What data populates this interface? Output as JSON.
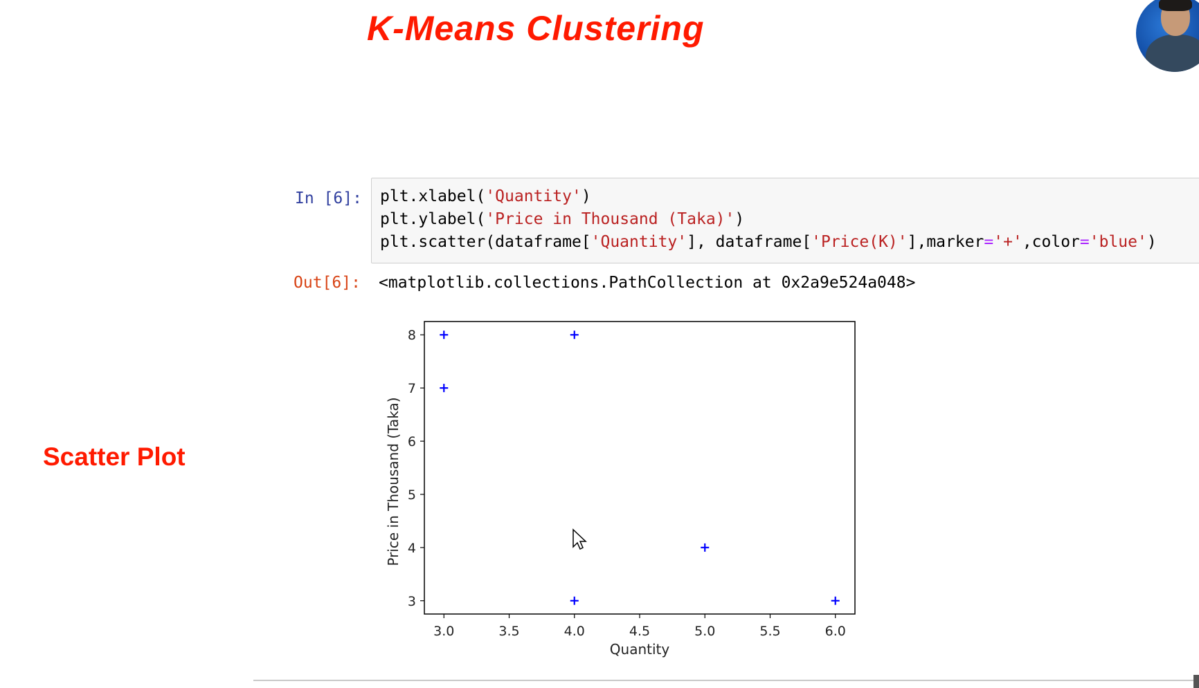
{
  "slide": {
    "title": "K-Means Clustering",
    "side_label": "Scatter Plot"
  },
  "notebook": {
    "input_prompt": "In [6]:",
    "output_prompt": "Out[6]:",
    "code_lines": [
      [
        {
          "t": "plt.xlabel(",
          "c": ""
        },
        {
          "t": "'Quantity'",
          "c": "str"
        },
        {
          "t": ")",
          "c": ""
        }
      ],
      [
        {
          "t": "plt.ylabel(",
          "c": ""
        },
        {
          "t": "'Price in Thousand (Taka)'",
          "c": "str"
        },
        {
          "t": ")",
          "c": ""
        }
      ],
      [
        {
          "t": "plt.scatter(dataframe[",
          "c": ""
        },
        {
          "t": "'Quantity'",
          "c": "str"
        },
        {
          "t": "], dataframe[",
          "c": ""
        },
        {
          "t": "'Price(K)'",
          "c": "str"
        },
        {
          "t": "],marker",
          "c": ""
        },
        {
          "t": "=",
          "c": "op"
        },
        {
          "t": "'+'",
          "c": "str"
        },
        {
          "t": ",color",
          "c": ""
        },
        {
          "t": "=",
          "c": "op"
        },
        {
          "t": "'blue'",
          "c": "str"
        },
        {
          "t": ")",
          "c": ""
        }
      ]
    ],
    "output_text": "<matplotlib.collections.PathCollection at 0x2a9e524a048>"
  },
  "chart_data": {
    "type": "scatter",
    "xlabel": "Quantity",
    "ylabel": "Price in Thousand (Taka)",
    "x": [
      3,
      3,
      4,
      4,
      5,
      6
    ],
    "y": [
      8,
      7,
      8,
      3,
      4,
      3
    ],
    "marker": "+",
    "color": "#0000ff",
    "xlim": [
      2.85,
      6.15
    ],
    "ylim": [
      2.75,
      8.25
    ],
    "xticks": [
      "3.0",
      "3.5",
      "4.0",
      "4.5",
      "5.0",
      "5.5",
      "6.0"
    ],
    "xtick_values": [
      3.0,
      3.5,
      4.0,
      4.5,
      5.0,
      5.5,
      6.0
    ],
    "yticks": [
      "3",
      "4",
      "5",
      "6",
      "7",
      "8"
    ],
    "ytick_values": [
      3,
      4,
      5,
      6,
      7,
      8
    ],
    "grid": false
  }
}
